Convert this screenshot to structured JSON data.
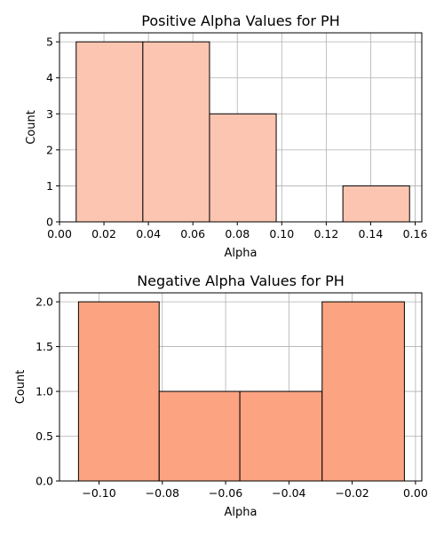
{
  "chart_data": [
    {
      "type": "bar",
      "title": "Positive Alpha Values for PH",
      "xlabel": "Alpha",
      "ylabel": "Count",
      "xlim": [
        0.0,
        0.163
      ],
      "ylim": [
        0,
        5.25
      ],
      "xticks": [
        0.0,
        0.02,
        0.04,
        0.06,
        0.08,
        0.1,
        0.12,
        0.14,
        0.16
      ],
      "xtick_labels": [
        "0.00",
        "0.02",
        "0.04",
        "0.06",
        "0.08",
        "0.10",
        "0.12",
        "0.14",
        "0.16"
      ],
      "yticks": [
        0,
        1,
        2,
        3,
        4,
        5
      ],
      "ytick_labels": [
        "0",
        "1",
        "2",
        "3",
        "4",
        "5"
      ],
      "bin_edges": [
        0.0075,
        0.0375,
        0.0675,
        0.0975,
        0.1275,
        0.1575
      ],
      "values": [
        5,
        5,
        3,
        0,
        1
      ],
      "grid": true,
      "bar_color": "#fcc5b1",
      "edge_color": "#000000"
    },
    {
      "type": "bar",
      "title": "Negative Alpha Values for PH",
      "xlabel": "Alpha",
      "ylabel": "Count",
      "xlim": [
        -0.1125,
        0.002
      ],
      "ylim": [
        0,
        2.1
      ],
      "xticks": [
        -0.1,
        -0.08,
        -0.06,
        -0.04,
        -0.02,
        0.0
      ],
      "xtick_labels": [
        "−0.10",
        "−0.08",
        "−0.06",
        "−0.04",
        "−0.02",
        "0.00"
      ],
      "yticks": [
        0.0,
        0.5,
        1.0,
        1.5,
        2.0
      ],
      "ytick_labels": [
        "0.0",
        "0.5",
        "1.0",
        "1.5",
        "2.0"
      ],
      "bin_edges": [
        -0.1065,
        -0.081,
        -0.0555,
        -0.0295,
        -0.0035
      ],
      "values": [
        2,
        1,
        1,
        2
      ],
      "grid": true,
      "bar_color": "#fca382",
      "edge_color": "#000000"
    }
  ]
}
